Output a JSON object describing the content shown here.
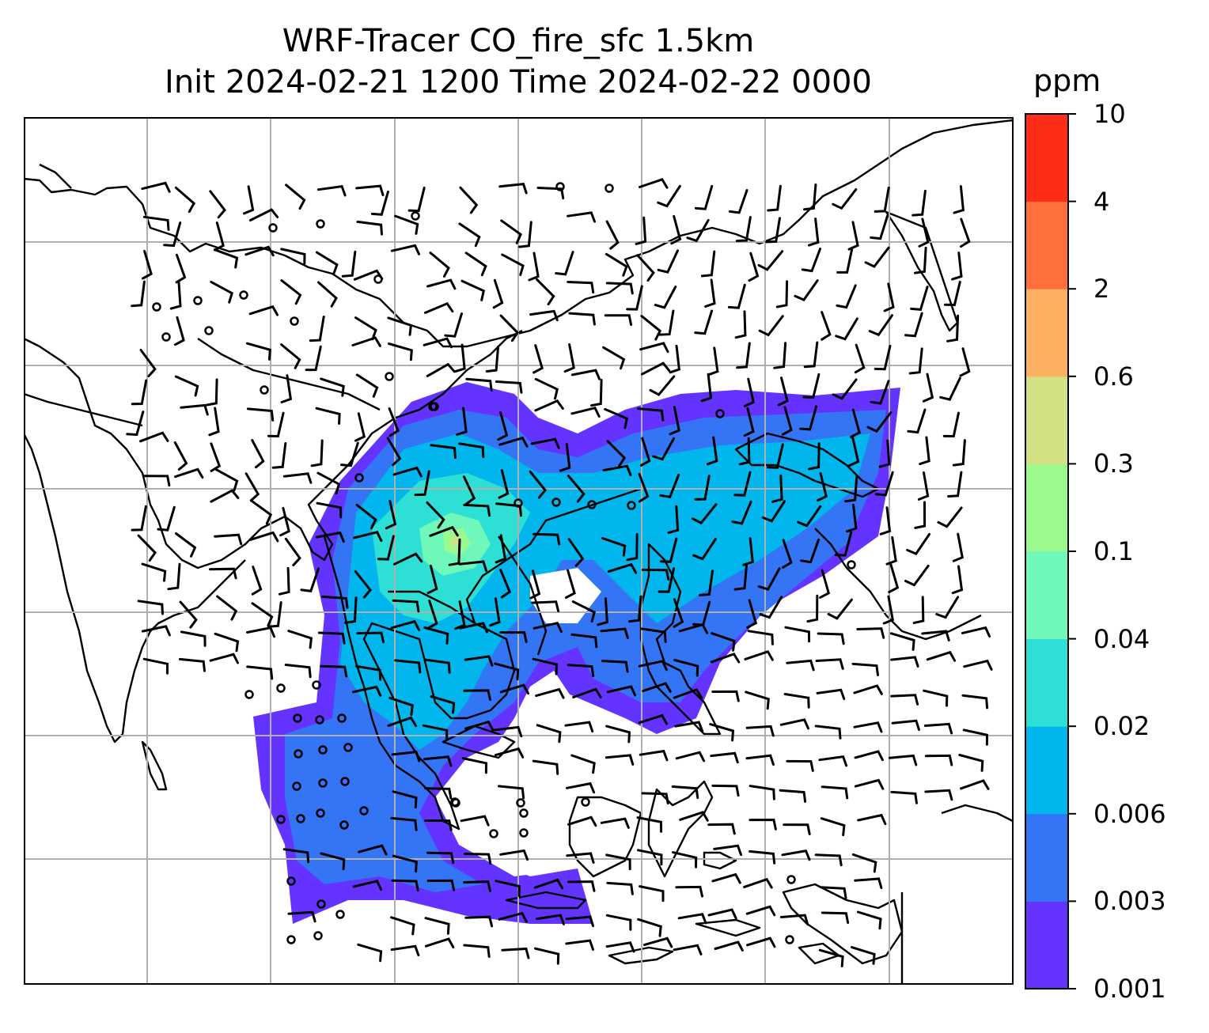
{
  "title": {
    "line1": "WRF-Tracer CO_fire_sfc 1.5km",
    "line2": "Init 2024-02-21 1200 Time 2024-02-22 0000"
  },
  "colorbar": {
    "unit": "ppm",
    "ticks": [
      "0.001",
      "0.003",
      "0.006",
      "0.02",
      "0.04",
      "0.1",
      "0.3",
      "0.6",
      "2",
      "4",
      "10"
    ],
    "colors": [
      "#6433ff",
      "#3375f4",
      "#00b6ec",
      "#2ddfd4",
      "#6ff8b9",
      "#9cf98e",
      "#d3e083",
      "#fdb060",
      "#ff703c",
      "#ff2c17"
    ]
  },
  "map": {
    "gridlines": true,
    "grid_color": "#b0b0b0",
    "coastline_color": "#000000",
    "symbols": [
      "wind-barbs",
      "calm-circles"
    ]
  },
  "chart_data": {
    "type": "heatmap",
    "title": "WRF-Tracer CO_fire_sfc 1.5km Init 2024-02-21 1200 Time 2024-02-22 0000",
    "variable": "CO_fire_sfc",
    "level": "1.5km",
    "init_time": "2024-02-21 1200",
    "valid_time": "2024-02-22 0000",
    "units": "ppm",
    "levels": [
      0.001,
      0.003,
      0.006,
      0.02,
      0.04,
      0.1,
      0.3,
      0.6,
      2,
      4,
      10
    ],
    "max_level_shown": "0.3"
  }
}
